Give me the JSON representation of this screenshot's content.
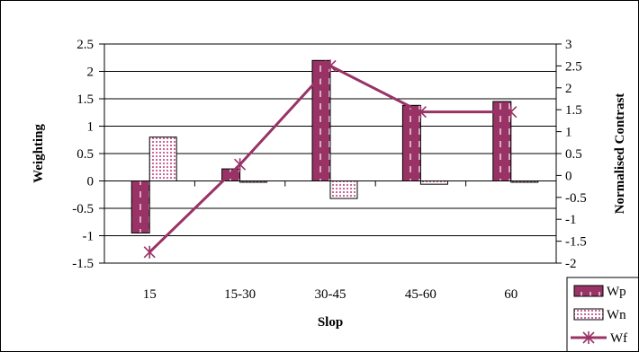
{
  "chart_data": {
    "type": "bar",
    "categories": [
      "15",
      "15-30",
      "30-45",
      "45-60",
      "60"
    ],
    "xlabel": "Slop",
    "ylabel": "Weighting",
    "y2label": "Normalised Contrast",
    "ylim": [
      -1.5,
      2.5
    ],
    "y2lim": [
      -2,
      3
    ],
    "yticks": [
      -1.5,
      -1,
      -0.5,
      0,
      0.5,
      1,
      1.5,
      2,
      2.5
    ],
    "y2ticks": [
      -2,
      -1.5,
      -1,
      -0.5,
      0,
      0.5,
      1,
      1.5,
      2,
      2.5,
      3
    ],
    "grid": true,
    "legend_position": "bottom-right",
    "series": [
      {
        "name": "Wp",
        "type": "bar",
        "axis": "left",
        "color": "#993366",
        "pattern": "white-dashes",
        "values": [
          -0.95,
          0.22,
          2.2,
          1.38,
          1.45
        ]
      },
      {
        "name": "Wn",
        "type": "bar",
        "axis": "left",
        "color": "#ffffff",
        "pattern": "pink-dots",
        "values": [
          0.8,
          -0.02,
          -0.32,
          -0.06,
          -0.02
        ]
      },
      {
        "name": "Wf",
        "type": "line",
        "axis": "right",
        "color": "#993366",
        "marker": "star",
        "values": [
          -1.75,
          0.25,
          2.5,
          1.45,
          1.45
        ]
      }
    ]
  }
}
